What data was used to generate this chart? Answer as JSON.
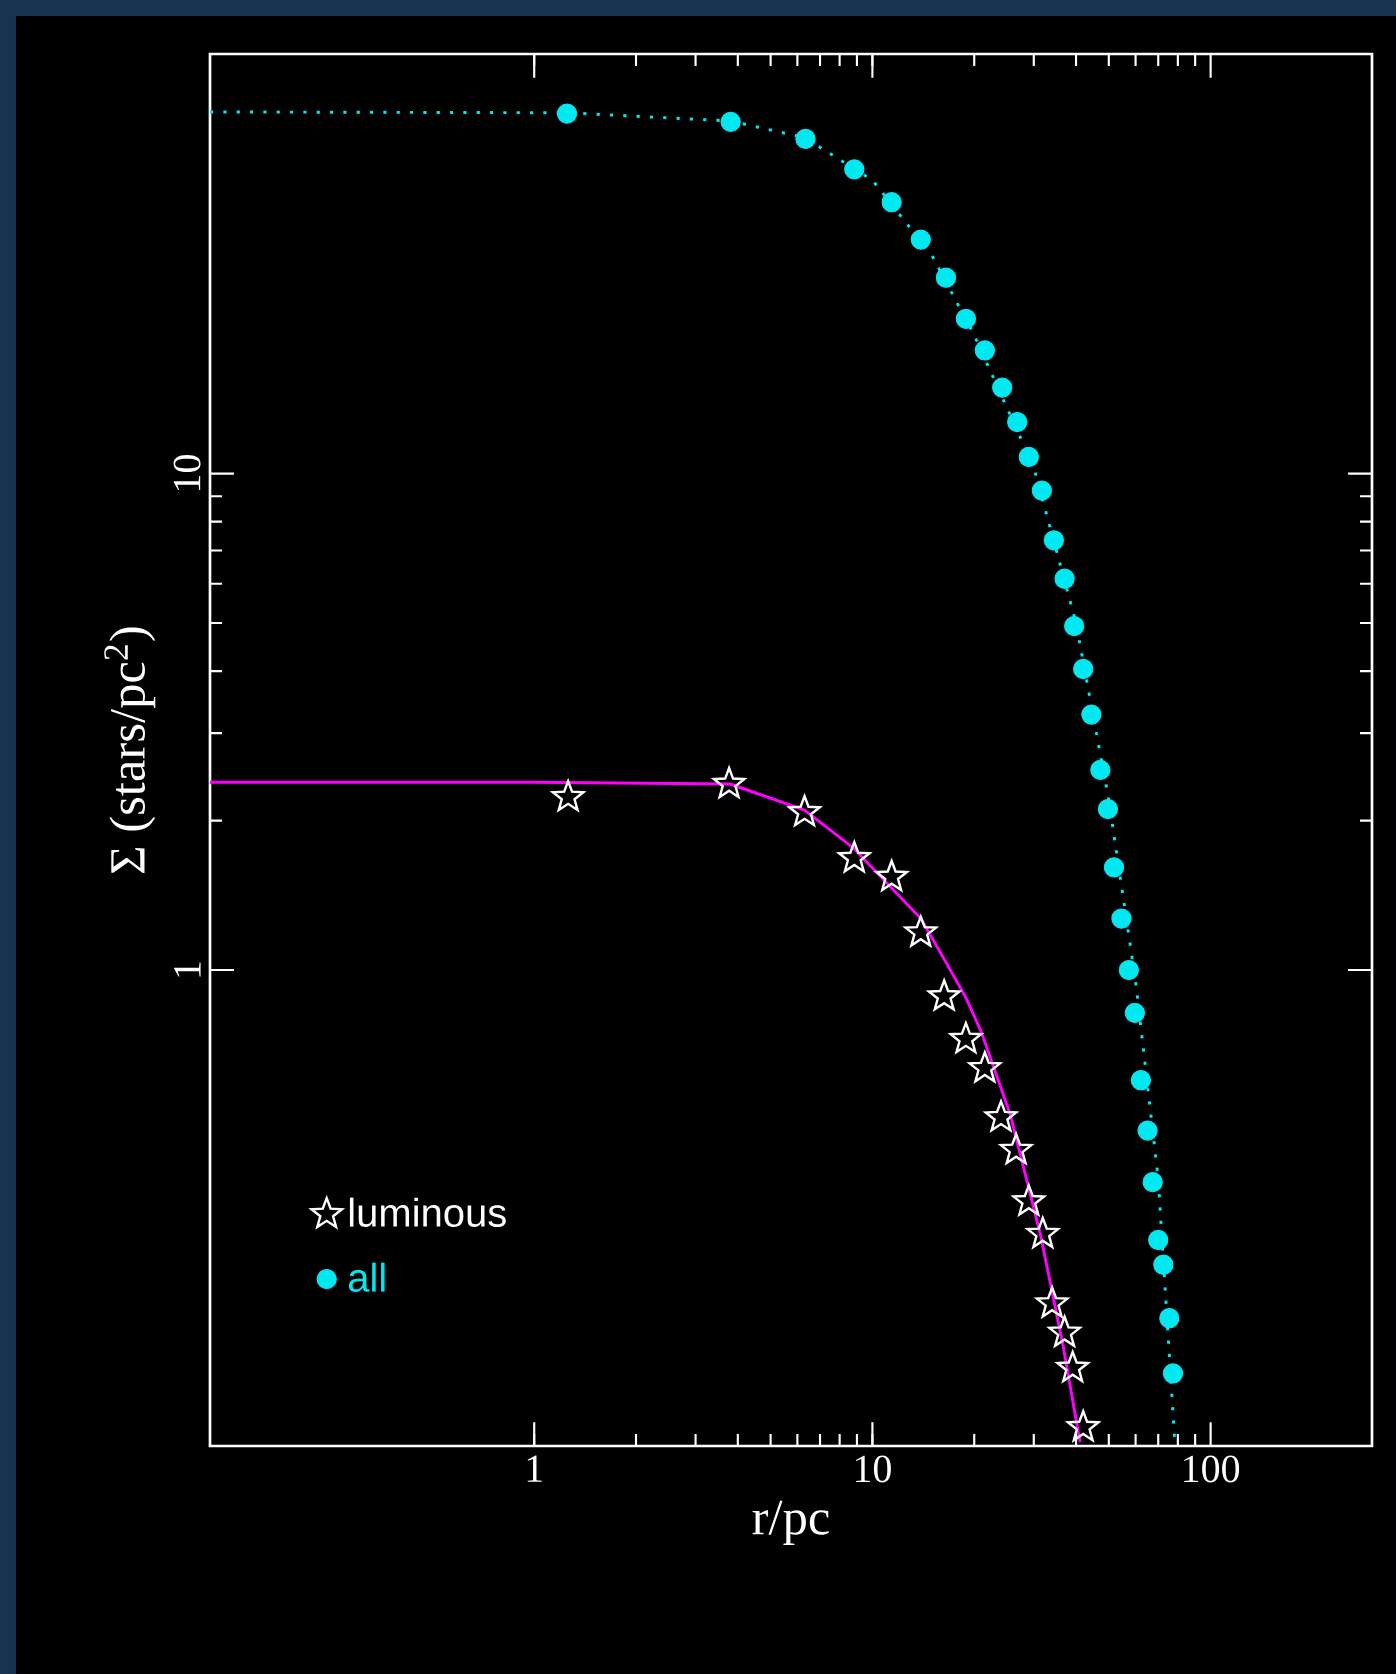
{
  "chart_data": {
    "type": "scatter",
    "xlabel": "r/pc",
    "ylabel": "Σ (stars/pc$^{2}$)",
    "log": "xy",
    "xlim": [
      0.11,
      300
    ],
    "ylim": [
      0.11,
      70
    ],
    "xticks": [
      1,
      10,
      100
    ],
    "yticks": [
      1,
      10
    ],
    "legend": "bottom left",
    "grid": false,
    "series": [
      {
        "type": "line",
        "color": "#00e8f0",
        "marker": "none",
        "line_style": "dotted",
        "x": [
          0.11,
          1.25,
          3.8,
          6.3,
          10,
          15,
          20,
          30,
          40,
          50,
          60,
          70,
          78.5
        ],
        "values": [
          53.5,
          53.3,
          51.3,
          47.5,
          39,
          27.5,
          19,
          10.3,
          5.0,
          2.2,
          0.95,
          0.38,
          0.11
        ]
      },
      {
        "type": "line",
        "color": "#ff00ff",
        "marker": "none",
        "line_style": "solid",
        "x": [
          0.11,
          1,
          3.8,
          6.3,
          8.8,
          13.9,
          16.2,
          18.9,
          21,
          25.6,
          31.5,
          36.7,
          41.1
        ],
        "values": [
          2.39,
          2.39,
          2.37,
          2.1,
          1.76,
          1.27,
          1.06,
          0.88,
          0.75,
          0.51,
          0.29,
          0.174,
          0.112
        ]
      },
      {
        "name": "luminous",
        "color": "#ffffff",
        "marker": "star",
        "x": [
          1.26,
          3.77,
          6.3,
          8.84,
          11.4,
          13.9,
          16.3,
          18.9,
          21.5,
          24.0,
          26.6,
          29.0,
          31.9,
          34.0,
          37.0,
          39.1,
          42.0
        ],
        "values": [
          2.23,
          2.37,
          2.08,
          1.68,
          1.54,
          1.19,
          0.885,
          0.726,
          0.634,
          0.505,
          0.434,
          0.342,
          0.294,
          0.213,
          0.186,
          0.158,
          0.12
        ]
      },
      {
        "name": "all",
        "color": "#00e8f0",
        "marker": "circle",
        "x": [
          1.25,
          3.81,
          6.34,
          8.84,
          11.4,
          13.9,
          16.5,
          18.9,
          21.5,
          24.2,
          26.8,
          29.0,
          31.7,
          34.4,
          37.0,
          39.5,
          42.0,
          44.4,
          47.2,
          49.7,
          51.8,
          54.5,
          57.3,
          59.7,
          62.2,
          65.1,
          67.4,
          70.0,
          72.5,
          75.5,
          77.4
        ],
        "values": [
          53.1,
          51.1,
          47.2,
          41.0,
          35.2,
          29.6,
          24.8,
          20.5,
          17.7,
          14.9,
          12.7,
          10.8,
          9.24,
          7.34,
          6.14,
          4.93,
          4.04,
          3.27,
          2.53,
          2.11,
          1.61,
          1.27,
          1.0,
          0.82,
          0.6,
          0.475,
          0.374,
          0.286,
          0.255,
          0.199,
          0.154
        ]
      }
    ]
  }
}
